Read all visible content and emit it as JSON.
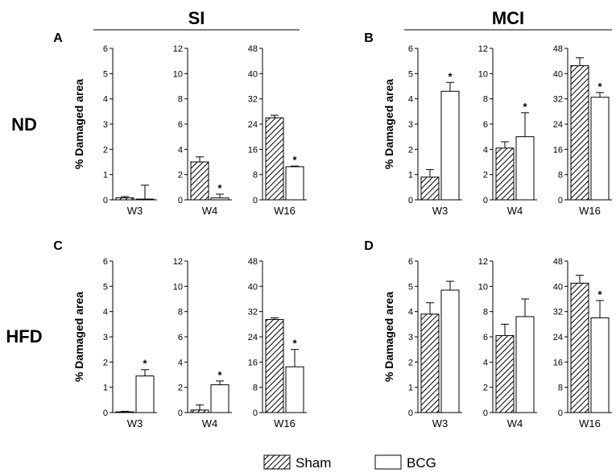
{
  "title_si": "SI",
  "title_mci": "MCI",
  "row_nd": "ND",
  "row_hfd": "HFD",
  "ylabel": "% Damaged area",
  "legend": {
    "sham": "Sham",
    "bcg": "BCG"
  },
  "colors": {
    "ink": "#000000",
    "bcg_fill": "#ffffff"
  },
  "chart_data": [
    {
      "panel": "A",
      "group": "SI",
      "diet": "ND",
      "type": "bar",
      "ylabel": "% Damaged area",
      "subplots": [
        {
          "category": "W3",
          "ylim": [
            0,
            6
          ],
          "yticks": [
            "0",
            "1",
            "2",
            "3",
            "4",
            "5",
            "6"
          ],
          "sham": 0.08,
          "sham_err": 0.05,
          "bcg": 0.03,
          "bcg_err": 0.55,
          "sig": false
        },
        {
          "category": "W4",
          "ylim": [
            0,
            12
          ],
          "yticks": [
            "0",
            "2",
            "4",
            "6",
            "8",
            "10",
            "12"
          ],
          "sham": 3.0,
          "sham_err": 0.4,
          "bcg": 0.15,
          "bcg_err": 0.3,
          "sig": true
        },
        {
          "category": "W16",
          "ylim": [
            0,
            48
          ],
          "yticks": [
            "0",
            "8",
            "16",
            "24",
            "32",
            "40",
            "48"
          ],
          "sham": 26.0,
          "sham_err": 0.8,
          "bcg": 10.5,
          "bcg_err": 0.2,
          "sig": true
        }
      ]
    },
    {
      "panel": "B",
      "group": "MCI",
      "diet": "ND",
      "type": "bar",
      "ylabel": "% Damaged area",
      "subplots": [
        {
          "category": "W3",
          "ylim": [
            0,
            6
          ],
          "yticks": [
            "0",
            "1",
            "2",
            "3",
            "4",
            "5",
            "6"
          ],
          "sham": 0.9,
          "sham_err": 0.3,
          "bcg": 4.3,
          "bcg_err": 0.35,
          "sig": true
        },
        {
          "category": "W4",
          "ylim": [
            0,
            12
          ],
          "yticks": [
            "0",
            "2",
            "4",
            "6",
            "8",
            "10",
            "12"
          ],
          "sham": 4.1,
          "sham_err": 0.5,
          "bcg": 5.0,
          "bcg_err": 1.9,
          "sig": true
        },
        {
          "category": "W16",
          "ylim": [
            0,
            48
          ],
          "yticks": [
            "0",
            "8",
            "16",
            "24",
            "32",
            "40",
            "48"
          ],
          "sham": 42.5,
          "sham_err": 2.5,
          "bcg": 32.5,
          "bcg_err": 1.5,
          "sig": true
        }
      ]
    },
    {
      "panel": "C",
      "group": "SI",
      "diet": "HFD",
      "type": "bar",
      "ylabel": "% Damaged area",
      "subplots": [
        {
          "category": "W3",
          "ylim": [
            0,
            6
          ],
          "yticks": [
            "0",
            "1",
            "2",
            "3",
            "4",
            "5",
            "6"
          ],
          "sham": 0.03,
          "sham_err": 0.02,
          "bcg": 1.45,
          "bcg_err": 0.25,
          "sig": true
        },
        {
          "category": "W4",
          "ylim": [
            0,
            12
          ],
          "yticks": [
            "0",
            "2",
            "4",
            "6",
            "8",
            "10",
            "12"
          ],
          "sham": 0.2,
          "sham_err": 0.4,
          "bcg": 2.2,
          "bcg_err": 0.3,
          "sig": true
        },
        {
          "category": "W16",
          "ylim": [
            0,
            48
          ],
          "yticks": [
            "0",
            "8",
            "16",
            "24",
            "32",
            "40",
            "48"
          ],
          "sham": 29.5,
          "sham_err": 0.5,
          "bcg": 14.5,
          "bcg_err": 5.5,
          "sig": true
        }
      ]
    },
    {
      "panel": "D",
      "group": "MCI",
      "diet": "HFD",
      "type": "bar",
      "ylabel": "% Damaged area",
      "subplots": [
        {
          "category": "W3",
          "ylim": [
            0,
            6
          ],
          "yticks": [
            "0",
            "1",
            "2",
            "3",
            "4",
            "5",
            "6"
          ],
          "sham": 3.9,
          "sham_err": 0.45,
          "bcg": 4.85,
          "bcg_err": 0.35,
          "sig": false
        },
        {
          "category": "W4",
          "ylim": [
            0,
            12
          ],
          "yticks": [
            "0",
            "2",
            "4",
            "6",
            "8",
            "10",
            "12"
          ],
          "sham": 6.1,
          "sham_err": 0.9,
          "bcg": 7.6,
          "bcg_err": 1.4,
          "sig": false
        },
        {
          "category": "W16",
          "ylim": [
            0,
            48
          ],
          "yticks": [
            "0",
            "8",
            "16",
            "24",
            "32",
            "40",
            "48"
          ],
          "sham": 41.0,
          "sham_err": 2.5,
          "bcg": 30.0,
          "bcg_err": 5.5,
          "sig": true
        }
      ]
    }
  ]
}
